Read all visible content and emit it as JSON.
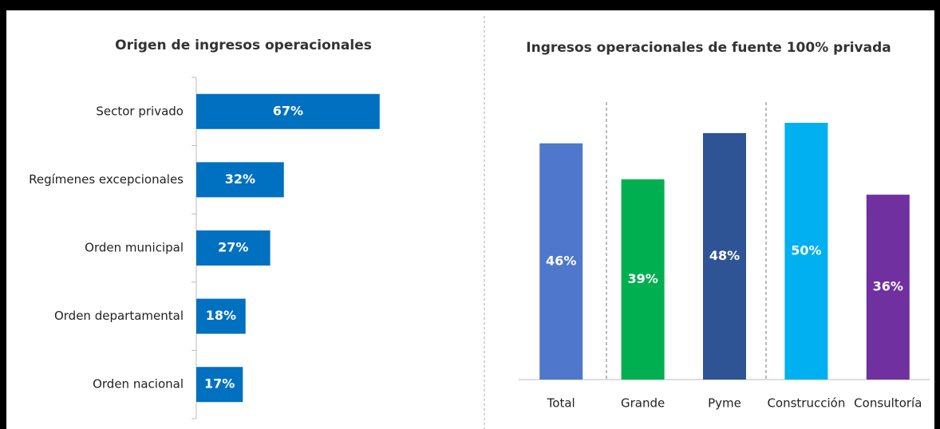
{
  "chart_data": [
    {
      "type": "bar",
      "orientation": "horizontal",
      "title": "Origen de ingresos operacionales",
      "categories": [
        "Sector privado",
        "Regímenes excepcionales",
        "Orden municipal",
        "Orden departamental",
        "Orden nacional"
      ],
      "values": [
        67,
        32,
        27,
        18,
        17
      ],
      "value_labels": [
        "67%",
        "32%",
        "27%",
        "18%",
        "17%"
      ],
      "color": "#0070c0",
      "xlim": [
        0,
        100
      ]
    },
    {
      "type": "bar",
      "orientation": "vertical",
      "title": "Ingresos operacionales de fuente 100% privada",
      "categories": [
        "Total",
        "Grande",
        "Pyme",
        "Construcción",
        "Consultoría"
      ],
      "values": [
        46,
        39,
        48,
        50,
        36
      ],
      "value_labels": [
        "46%",
        "39%",
        "48%",
        "50%",
        "36%"
      ],
      "colors": [
        "#4f78cc",
        "#00b050",
        "#2f5496",
        "#00b0f0",
        "#7030a0"
      ],
      "ylim": [
        0,
        100
      ]
    }
  ]
}
